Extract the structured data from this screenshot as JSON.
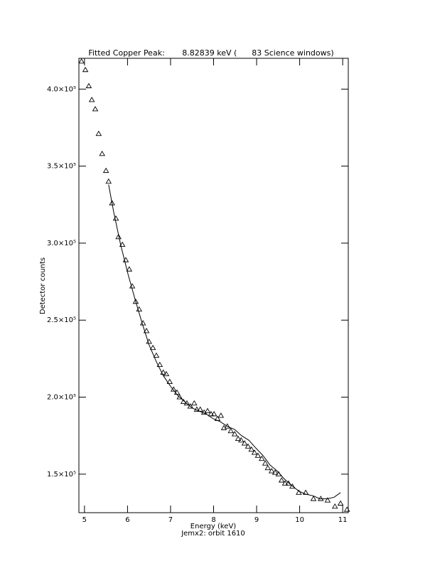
{
  "chart_data": {
    "type": "scatter",
    "title": "Fitted Copper Peak:       8.82839 keV (      83 Science windows)",
    "x_label": "Energy (keV)",
    "subtitle": "Jemx2: orbit 1610",
    "y_label": "Detector counts",
    "xlim": [
      4.87,
      11.13
    ],
    "ylim": [
      125000,
      420000
    ],
    "xticks": [
      5,
      6,
      7,
      8,
      9,
      10,
      11
    ],
    "yticks": [
      {
        "value": 150000,
        "label": "1.5×10⁵"
      },
      {
        "value": 200000,
        "label": "2.0×10⁵"
      },
      {
        "value": 250000,
        "label": "2.5×10⁵"
      },
      {
        "value": 300000,
        "label": "3.0×10⁵"
      },
      {
        "value": 350000,
        "label": "3.5×10⁵"
      },
      {
        "value": 400000,
        "label": "4.0×10⁵"
      }
    ],
    "series": [
      {
        "marker": "triangle",
        "color": "#000000",
        "x": [
          4.93,
          5.02,
          5.1,
          5.17,
          5.25,
          5.33,
          5.41,
          5.5,
          5.56,
          5.64,
          5.73,
          5.79,
          5.88,
          5.96,
          6.04,
          6.11,
          6.19,
          6.27,
          6.36,
          6.44,
          6.5,
          6.59,
          6.67,
          6.75,
          6.83,
          6.9,
          6.98,
          7.07,
          7.15,
          7.21,
          7.3,
          7.38,
          7.46,
          7.55,
          7.61,
          7.69,
          7.78,
          7.86,
          7.94,
          8.01,
          8.09,
          8.17,
          8.24,
          8.32,
          8.4,
          8.49,
          8.57,
          8.64,
          8.72,
          8.8,
          8.88,
          8.95,
          9.03,
          9.12,
          9.2,
          9.26,
          9.35,
          9.43,
          9.51,
          9.58,
          9.66,
          9.74,
          9.83,
          9.98,
          10.14,
          10.32,
          10.49,
          10.65,
          10.82,
          10.95,
          11.1
        ],
        "values": [
          418000,
          412500,
          402000,
          393000,
          387000,
          371000,
          358000,
          347000,
          340000,
          326000,
          316000,
          304000,
          299000,
          289000,
          283000,
          272000,
          262000,
          257000,
          248000,
          243000,
          236000,
          232000,
          227000,
          221000,
          216000,
          215000,
          210000,
          205000,
          203000,
          200000,
          197000,
          196000,
          194000,
          196000,
          192000,
          192000,
          190000,
          191000,
          189000,
          189000,
          186000,
          188000,
          180000,
          181000,
          178000,
          176000,
          173000,
          172000,
          170000,
          168000,
          166000,
          164000,
          162000,
          160000,
          157000,
          154000,
          152000,
          151000,
          150000,
          146000,
          144000,
          144000,
          142000,
          138000,
          138000,
          134000,
          134000,
          133000,
          129000,
          131000,
          127000
        ]
      },
      {
        "marker": "line",
        "color": "#000000",
        "x": [
          5.56,
          5.68,
          5.84,
          6.01,
          6.17,
          6.34,
          6.5,
          6.67,
          6.83,
          7.0,
          7.17,
          7.33,
          7.5,
          7.66,
          7.83,
          7.99,
          8.16,
          8.32,
          8.49,
          8.65,
          8.82,
          8.98,
          9.15,
          9.31,
          9.48,
          9.64,
          9.8,
          9.98,
          10.14,
          10.31,
          10.47,
          10.64,
          10.8,
          10.95
        ],
        "values": [
          338000,
          320000,
          299000,
          280000,
          264000,
          248000,
          234000,
          223000,
          214000,
          207000,
          201000,
          197000,
          193000,
          191000,
          189000,
          186000,
          184000,
          181000,
          179000,
          175000,
          172000,
          167000,
          162000,
          156000,
          152000,
          147000,
          143000,
          139000,
          137000,
          136000,
          134000,
          134000,
          135000,
          138000
        ]
      }
    ]
  }
}
